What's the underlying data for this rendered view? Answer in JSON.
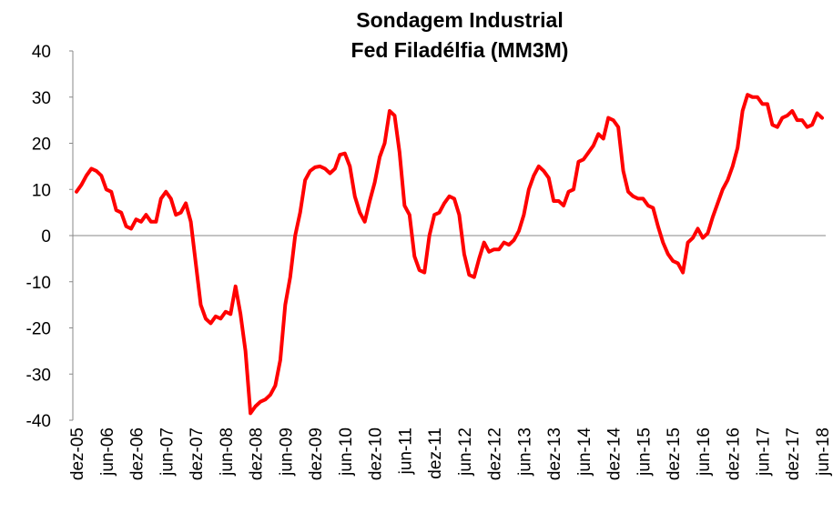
{
  "chart_data": {
    "type": "line",
    "title": [
      "Sondagem Industrial",
      "Fed Filadélfia (MM3M)"
    ],
    "categories": [
      "dez-05",
      null,
      null,
      null,
      null,
      null,
      "jun-06",
      null,
      null,
      null,
      null,
      null,
      "dez-06",
      null,
      null,
      null,
      null,
      null,
      "jun-07",
      null,
      null,
      null,
      null,
      null,
      "dez-07",
      null,
      null,
      null,
      null,
      null,
      "jun-08",
      null,
      null,
      null,
      null,
      null,
      "dez-08",
      null,
      null,
      null,
      null,
      null,
      "jun-09",
      null,
      null,
      null,
      null,
      null,
      "dez-09",
      null,
      null,
      null,
      null,
      null,
      "jun-10",
      null,
      null,
      null,
      null,
      null,
      "dez-10",
      null,
      null,
      null,
      null,
      null,
      "jun-11",
      null,
      null,
      null,
      null,
      null,
      "dez-11",
      null,
      null,
      null,
      null,
      null,
      "jun-12",
      null,
      null,
      null,
      null,
      null,
      "dez-12",
      null,
      null,
      null,
      null,
      null,
      "jun-13",
      null,
      null,
      null,
      null,
      null,
      "dez-13",
      null,
      null,
      null,
      null,
      null,
      "jun-14",
      null,
      null,
      null,
      null,
      null,
      "dez-14",
      null,
      null,
      null,
      null,
      null,
      "jun-15",
      null,
      null,
      null,
      null,
      null,
      "dez-15",
      null,
      null,
      null,
      null,
      null,
      "jun-16",
      null,
      null,
      null,
      null,
      null,
      "dez-16",
      null,
      null,
      null,
      null,
      null,
      "jun-17",
      null,
      null,
      null,
      null,
      null,
      "dez-17",
      null,
      null,
      null,
      null,
      null,
      "jun-18"
    ],
    "series": [
      {
        "name": "Fed Filadélfia (MM3M)",
        "color": "#ff0000",
        "values": [
          9.5,
          11,
          13,
          14.5,
          14,
          13,
          10,
          9.5,
          5.5,
          5,
          2,
          1.5,
          3.5,
          3,
          4.5,
          3,
          3,
          8,
          9.5,
          8,
          4.5,
          5,
          7,
          3,
          -6,
          -15,
          -18,
          -19,
          -17.5,
          -18,
          -16.5,
          -17,
          -11,
          -17,
          -25,
          -38.5,
          -37,
          -36,
          -35.5,
          -34.5,
          -32.5,
          -27,
          -15,
          -9,
          0,
          5,
          12,
          14,
          14.8,
          15,
          14.5,
          13.5,
          14.5,
          17.5,
          17.8,
          15,
          8.5,
          5,
          3,
          7.5,
          11.5,
          17,
          20,
          27,
          26,
          18,
          6.5,
          4.5,
          -4.5,
          -7.5,
          -8,
          0,
          4.5,
          5,
          7,
          8.5,
          8,
          4.5,
          -4,
          -8.5,
          -9,
          -5,
          -1.5,
          -3.5,
          -3,
          -3,
          -1.5,
          -2,
          -1,
          1,
          4.5,
          10,
          13,
          15,
          14,
          12.5,
          7.5,
          7.5,
          6.5,
          9.5,
          10,
          16,
          16.5,
          18,
          19.5,
          22,
          21,
          25.5,
          25,
          23.5,
          14,
          9.5,
          8.5,
          8,
          8,
          6.5,
          6,
          2,
          -1.5,
          -4,
          -5.5,
          -6,
          -8,
          -1.5,
          -0.5,
          1.5,
          -0.5,
          0.5,
          4,
          7,
          10,
          12,
          15,
          19,
          27,
          30.5,
          30,
          30,
          28.5,
          28.5,
          24,
          23.5,
          25.5,
          26,
          27,
          25,
          25,
          23.5,
          24,
          26.5,
          25.5
        ]
      }
    ],
    "ylim": [
      -40,
      40
    ],
    "yticks": [
      -40,
      -30,
      -20,
      -10,
      0,
      10,
      20,
      30,
      40
    ],
    "grid": false
  }
}
